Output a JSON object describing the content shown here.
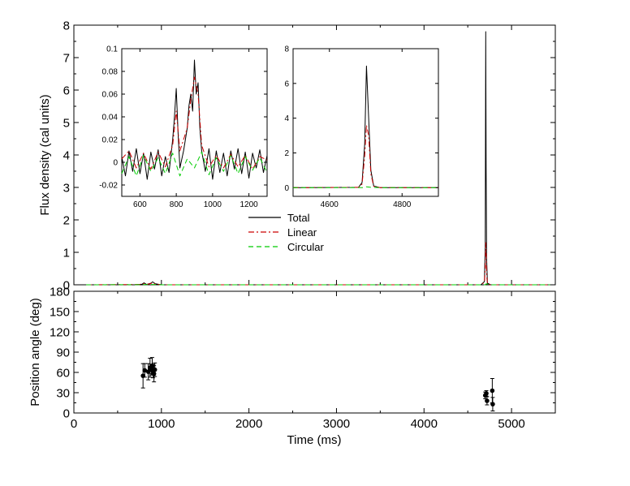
{
  "chart_data": [
    {
      "id": "flux_main",
      "type": "line",
      "xlabel": "",
      "ylabel": "Flux density (cal units)",
      "xlim": [
        0,
        5500
      ],
      "ylim": [
        0,
        8
      ],
      "xticks": [
        0,
        1000,
        2000,
        3000,
        4000,
        5000
      ],
      "yticks": [
        0,
        1,
        2,
        3,
        4,
        5,
        6,
        7,
        8
      ],
      "grid": false,
      "legend": {
        "placement": "center",
        "entries": [
          "Total",
          "Linear",
          "Circular"
        ]
      },
      "series": [
        {
          "name": "Total",
          "color": "#000000",
          "style": "solid",
          "x": [
            140,
            700,
            780,
            800,
            830,
            880,
            900,
            930,
            1000,
            4650,
            4690,
            4700,
            4705,
            4710,
            4715,
            4725,
            4760,
            5440
          ],
          "y": [
            0,
            0,
            0.02,
            0.06,
            0.01,
            0.05,
            0.09,
            0.03,
            0,
            0,
            0.1,
            1.2,
            7.8,
            3.6,
            0.8,
            0.05,
            0,
            0
          ]
        },
        {
          "name": "Linear",
          "color": "#cc0000",
          "style": "dashdot",
          "x": [
            140,
            780,
            800,
            830,
            880,
            900,
            930,
            1000,
            4650,
            4690,
            4700,
            4705,
            4710,
            4715,
            4725,
            4760,
            5440
          ],
          "y": [
            0,
            0.01,
            0.04,
            0.01,
            0.04,
            0.07,
            0.02,
            0,
            0,
            0.08,
            0.5,
            1.3,
            1.0,
            0.3,
            0.03,
            0,
            0
          ]
        },
        {
          "name": "Circular",
          "color": "#00cc00",
          "style": "dashed",
          "x": [
            140,
            800,
            900,
            1000,
            4700,
            4710,
            4760,
            5440
          ],
          "y": [
            0,
            0.005,
            0.01,
            0,
            0,
            0.03,
            0,
            0
          ]
        }
      ]
    },
    {
      "id": "flux_inset_a",
      "type": "line",
      "xlim": [
        500,
        1300
      ],
      "ylim": [
        -0.03,
        0.1
      ],
      "xticks": [
        600,
        800,
        1000,
        1200
      ],
      "yticks": [
        -0.02,
        0,
        0.02,
        0.04,
        0.06,
        0.08,
        0.1
      ],
      "ytick_labels": [
        "-0.02",
        "0",
        "0.02",
        "0.04",
        "0.06",
        "0.08",
        "0.1"
      ],
      "series": [
        {
          "name": "Total",
          "color": "#000000",
          "style": "solid",
          "x": [
            500,
            520,
            540,
            560,
            580,
            600,
            620,
            640,
            660,
            680,
            700,
            720,
            740,
            760,
            780,
            790,
            800,
            810,
            820,
            840,
            860,
            870,
            880,
            890,
            900,
            910,
            920,
            930,
            940,
            960,
            980,
            1000,
            1020,
            1040,
            1060,
            1080,
            1100,
            1120,
            1140,
            1160,
            1180,
            1200,
            1220,
            1240,
            1260,
            1280,
            1300
          ],
          "y": [
            0.005,
            -0.012,
            0.01,
            -0.008,
            0.012,
            -0.01,
            0.008,
            -0.015,
            0.009,
            -0.006,
            0.011,
            -0.012,
            0.005,
            -0.009,
            0.02,
            0.04,
            0.065,
            0.025,
            -0.005,
            0.01,
            0.03,
            0.05,
            0.06,
            0.045,
            0.09,
            0.06,
            0.07,
            0.03,
            0.01,
            -0.008,
            0.012,
            -0.015,
            0.01,
            -0.009,
            0.008,
            -0.012,
            0.01,
            -0.006,
            0.012,
            -0.01,
            0.009,
            -0.014,
            0.008,
            -0.005,
            0.011,
            -0.009,
            0.006
          ]
        },
        {
          "name": "Linear",
          "color": "#cc0000",
          "style": "dashdot",
          "x": [
            500,
            540,
            580,
            620,
            660,
            700,
            740,
            780,
            800,
            820,
            860,
            880,
            900,
            920,
            940,
            980,
            1020,
            1060,
            1100,
            1140,
            1180,
            1220,
            1260,
            1300
          ],
          "y": [
            0.003,
            0.01,
            -0.005,
            0.008,
            -0.006,
            0.009,
            -0.004,
            0.015,
            0.045,
            0.01,
            0.03,
            0.055,
            0.075,
            0.06,
            0.015,
            -0.004,
            0.006,
            -0.005,
            0.007,
            -0.004,
            0.006,
            -0.006,
            0.005,
            0.002
          ]
        },
        {
          "name": "Circular",
          "color": "#00cc00",
          "style": "dashed",
          "x": [
            500,
            540,
            580,
            620,
            660,
            700,
            740,
            780,
            820,
            860,
            900,
            940,
            980,
            1020,
            1060,
            1100,
            1140,
            1180,
            1220,
            1260,
            1300
          ],
          "y": [
            -0.01,
            0.005,
            -0.012,
            0.006,
            -0.008,
            0.004,
            -0.01,
            0.008,
            -0.012,
            0.003,
            -0.005,
            0.009,
            -0.011,
            0.004,
            -0.008,
            0.006,
            -0.01,
            0.005,
            -0.007,
            0.004,
            -0.009
          ]
        }
      ]
    },
    {
      "id": "flux_inset_b",
      "type": "line",
      "xlim": [
        4500,
        4900
      ],
      "ylim": [
        -0.5,
        8
      ],
      "xticks": [
        4600,
        4800
      ],
      "yticks": [
        0,
        2,
        4,
        6,
        8
      ],
      "series": [
        {
          "name": "Total",
          "color": "#000000",
          "style": "solid",
          "x": [
            4500,
            4680,
            4690,
            4697,
            4702,
            4708,
            4714,
            4722,
            4740,
            4900
          ],
          "y": [
            0,
            0.02,
            0.3,
            2.5,
            7.0,
            4.0,
            1.0,
            0.1,
            0,
            0
          ]
        },
        {
          "name": "Linear",
          "color": "#cc0000",
          "style": "dashdot",
          "x": [
            4500,
            4680,
            4690,
            4697,
            4702,
            4708,
            4714,
            4722,
            4740,
            4900
          ],
          "y": [
            0,
            0.02,
            0.2,
            1.8,
            3.6,
            3.0,
            0.8,
            0.08,
            0,
            0
          ]
        },
        {
          "name": "Circular",
          "color": "#00cc00",
          "style": "dashed",
          "x": [
            4500,
            4690,
            4702,
            4714,
            4740,
            4900
          ],
          "y": [
            0,
            0,
            0.05,
            0.02,
            0,
            0
          ]
        }
      ]
    },
    {
      "id": "position_angle",
      "type": "scatter",
      "xlabel": "Time (ms)",
      "ylabel": "Position angle (deg)",
      "xlim": [
        0,
        5500
      ],
      "ylim": [
        0,
        180
      ],
      "xticks": [
        0,
        1000,
        2000,
        3000,
        4000,
        5000
      ],
      "yticks": [
        0,
        30,
        60,
        90,
        120,
        150,
        180
      ],
      "points": [
        {
          "x": 790,
          "y": 55,
          "err": 18
        },
        {
          "x": 810,
          "y": 63,
          "err": 10
        },
        {
          "x": 850,
          "y": 61,
          "err": 12
        },
        {
          "x": 870,
          "y": 67,
          "err": 14
        },
        {
          "x": 885,
          "y": 64,
          "err": 8
        },
        {
          "x": 895,
          "y": 70,
          "err": 12
        },
        {
          "x": 905,
          "y": 62,
          "err": 10
        },
        {
          "x": 915,
          "y": 58,
          "err": 12
        },
        {
          "x": 925,
          "y": 64,
          "err": 10
        },
        {
          "x": 4700,
          "y": 26,
          "err": 5
        },
        {
          "x": 4712,
          "y": 29,
          "err": 4
        },
        {
          "x": 4720,
          "y": 18,
          "err": 6
        },
        {
          "x": 4780,
          "y": 33,
          "err": 18
        },
        {
          "x": 4785,
          "y": 13,
          "err": 10
        }
      ]
    }
  ]
}
